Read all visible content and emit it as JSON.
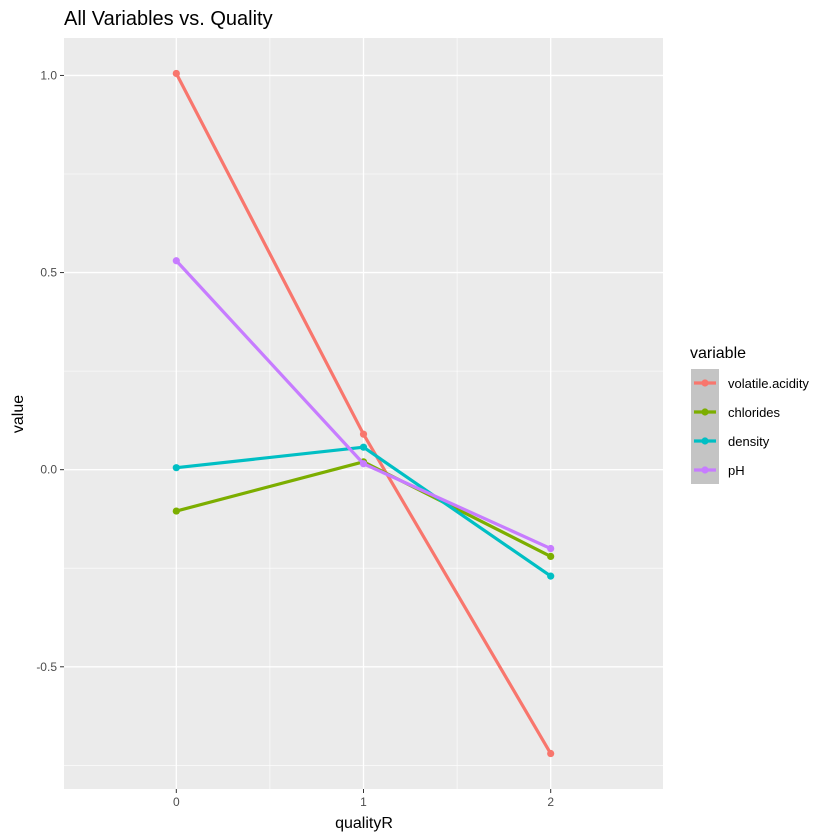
{
  "chart_data": {
    "type": "line",
    "title": "All Variables vs. Quality",
    "xlabel": "qualityR",
    "ylabel": "value",
    "x": [
      0,
      1,
      2
    ],
    "x_tick_labels": [
      "0",
      "1",
      "2"
    ],
    "xlim": [
      -0.6,
      2.6
    ],
    "y_ticks": [
      -0.5,
      0.0,
      0.5,
      1.0
    ],
    "y_tick_labels": [
      "-0.5",
      "0.0",
      "0.5",
      "1.0"
    ],
    "ylim": [
      -0.81,
      1.095
    ],
    "grid": true,
    "legend": {
      "title": "variable",
      "position": "right"
    },
    "series": [
      {
        "name": "volatile.acidity",
        "color": "#F8766D",
        "values": [
          1.005,
          0.09,
          -0.72
        ]
      },
      {
        "name": "chlorides",
        "color": "#7CAE00",
        "values": [
          -0.105,
          0.02,
          -0.22
        ]
      },
      {
        "name": "density",
        "color": "#00BFC4",
        "values": [
          0.005,
          0.057,
          -0.27
        ]
      },
      {
        "name": "pH",
        "color": "#C77CFF",
        "values": [
          0.53,
          0.015,
          -0.2
        ]
      }
    ]
  }
}
